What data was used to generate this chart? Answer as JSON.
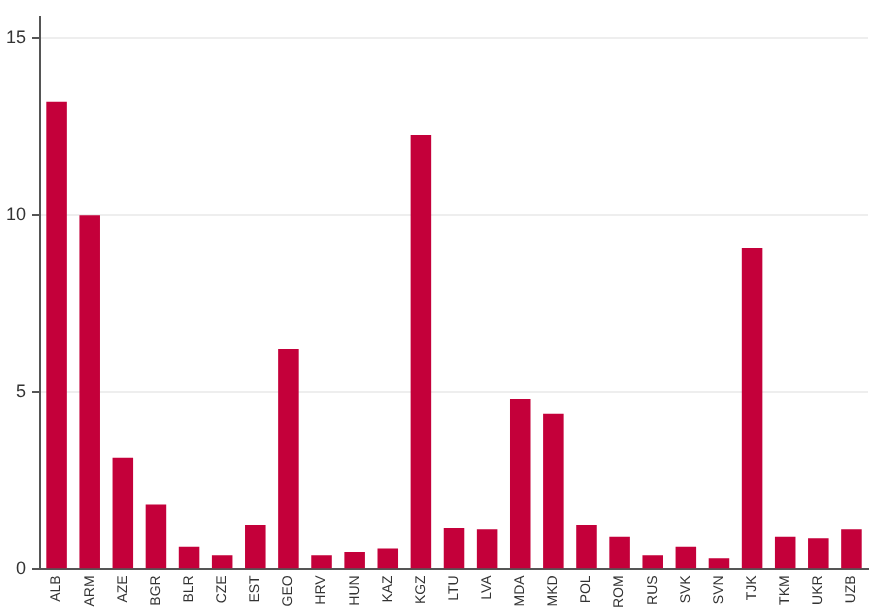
{
  "chart_data": {
    "type": "bar",
    "categories": [
      "ALB",
      "ARM",
      "AZE",
      "BGR",
      "BLR",
      "CZE",
      "EST",
      "GEO",
      "HRV",
      "HUN",
      "KAZ",
      "KGZ",
      "LTU",
      "LVA",
      "MDA",
      "MKD",
      "POL",
      "ROM",
      "RUS",
      "SVK",
      "SVN",
      "TJK",
      "TKM",
      "UKR",
      "UZB"
    ],
    "values": [
      13.2,
      10.0,
      3.15,
      1.83,
      0.64,
      0.4,
      1.25,
      6.22,
      0.4,
      0.49,
      0.59,
      12.26,
      1.17,
      1.13,
      4.81,
      4.39,
      1.25,
      0.92,
      0.4,
      0.64,
      0.31,
      9.07,
      0.92,
      0.88,
      1.13
    ],
    "color": "#c4003a",
    "ylim": [
      0,
      15.6
    ],
    "yticks": [
      0,
      5,
      10,
      15
    ],
    "grid": "y"
  }
}
